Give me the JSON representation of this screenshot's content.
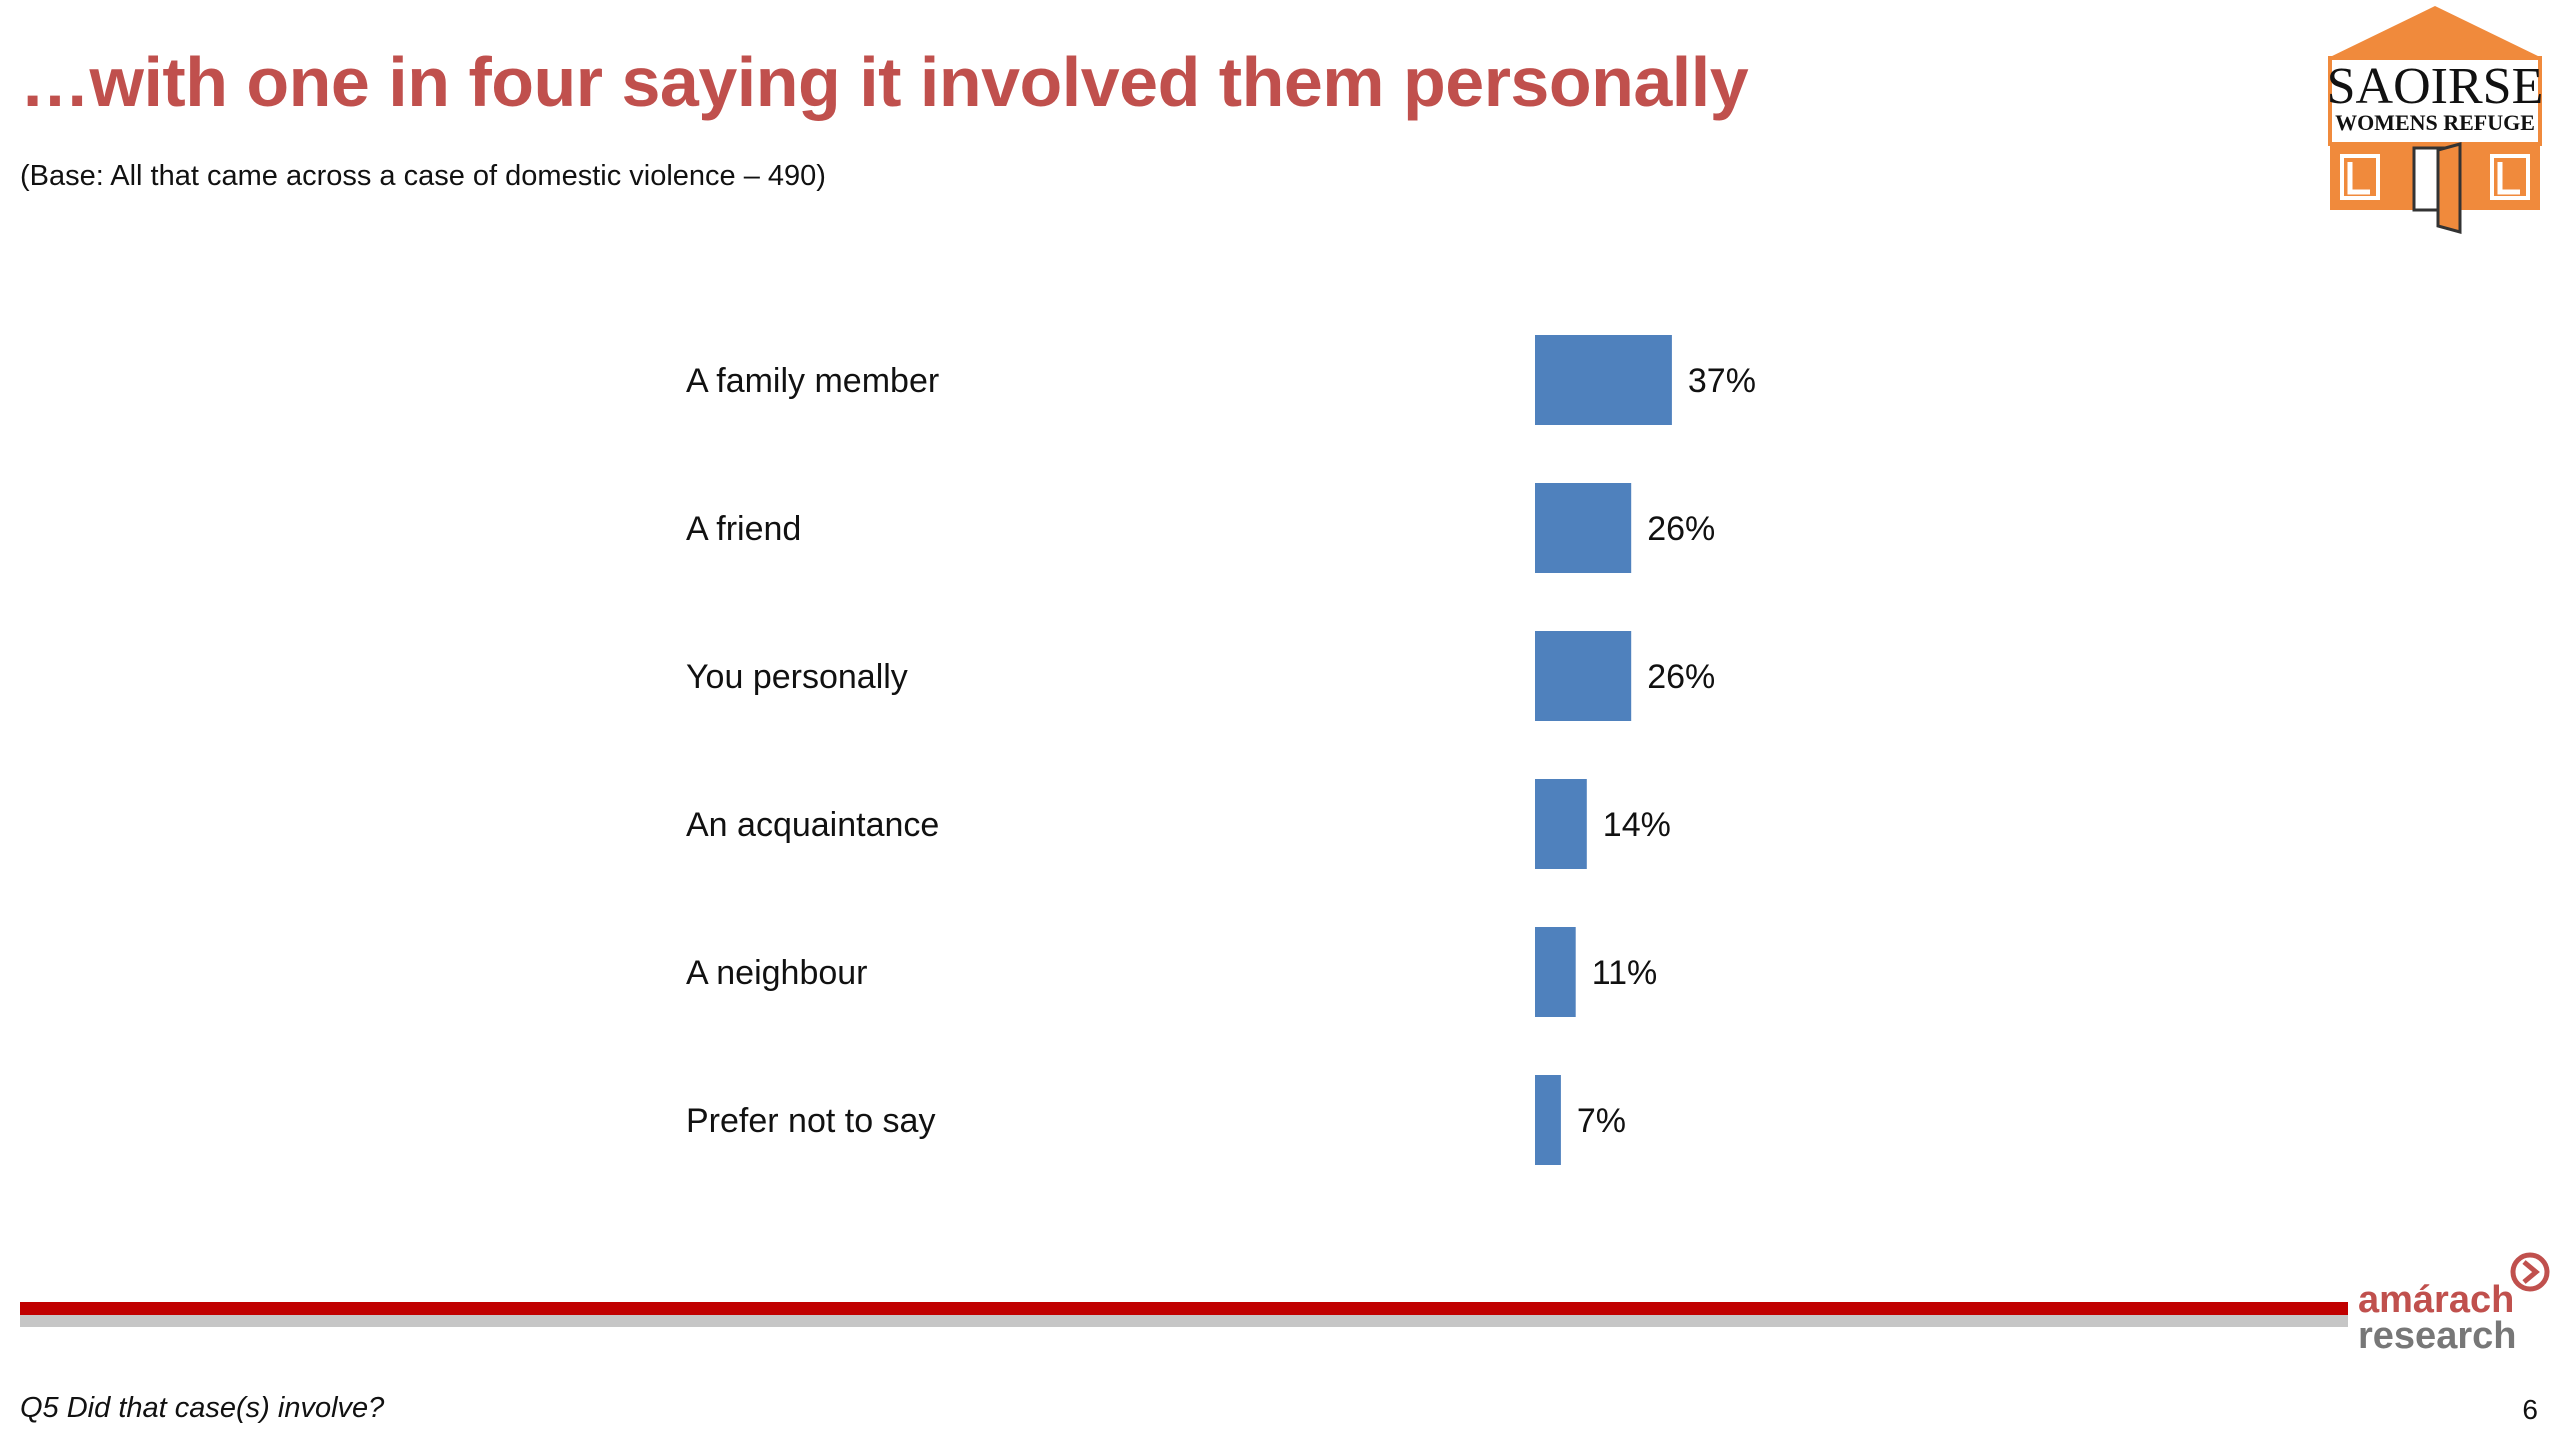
{
  "slide": {
    "title": "…with one in four saying it involved them personally",
    "subtitle": "(Base:  All that came across a case of domestic violence – 490)",
    "footnote": "Q5 Did that case(s) involve?",
    "page_number": "6"
  },
  "logos": {
    "saoirse": {
      "line1": "SAOIRSE",
      "line2": "WOMENS REFUGE",
      "roof_color": "#f08a3c",
      "body_color": "#f08a3c"
    },
    "amarach": {
      "line1": "amárach",
      "line2": "research",
      "color": "#c0504d"
    }
  },
  "colors": {
    "title": "#c0504d",
    "bar": "#4f81bd",
    "divider_red": "#c00000",
    "divider_grey": "#c6c6c6"
  },
  "chart_data": {
    "type": "bar",
    "orientation": "horizontal",
    "categories": [
      "A family member",
      "A friend",
      "You personally",
      "An acquaintance",
      "A neighbour",
      "Prefer not to say"
    ],
    "values": [
      37,
      26,
      26,
      14,
      11,
      7
    ],
    "value_labels": [
      "37%",
      "26%",
      "26%",
      "14%",
      "11%",
      "7%"
    ],
    "unit": "%",
    "xlim": [
      0,
      100
    ],
    "grid": false,
    "legend": "none"
  }
}
